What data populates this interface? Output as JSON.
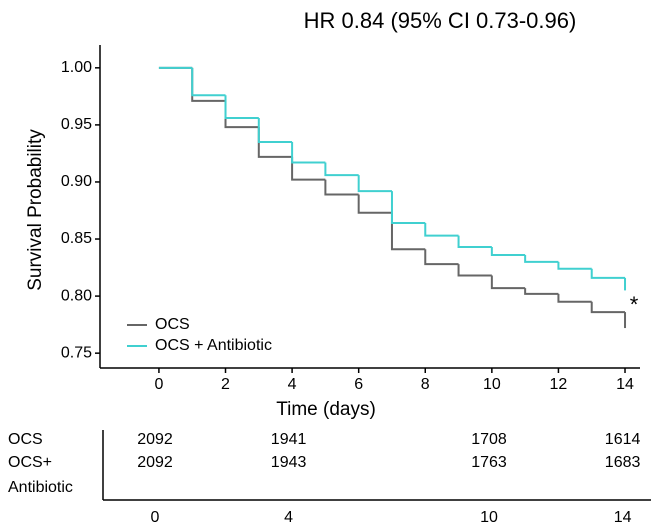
{
  "chart_data": {
    "type": "step",
    "title": "HR 0.84 (95% CI 0.73-0.96)",
    "x_label": "Time (days)",
    "y_label": "Survival Probability",
    "x": [
      0,
      1,
      2,
      3,
      4,
      5,
      6,
      7,
      8,
      9,
      10,
      11,
      12,
      13,
      14
    ],
    "series": [
      {
        "name": "OCS",
        "color": "#666666",
        "values": [
          1.0,
          0.971,
          0.948,
          0.922,
          0.902,
          0.889,
          0.873,
          0.841,
          0.828,
          0.818,
          0.807,
          0.802,
          0.795,
          0.786,
          0.772
        ]
      },
      {
        "name": "OCS + Antibiotic",
        "color": "#40d0d0",
        "values": [
          1.0,
          0.976,
          0.956,
          0.935,
          0.917,
          0.906,
          0.892,
          0.864,
          0.853,
          0.843,
          0.836,
          0.83,
          0.824,
          0.816,
          0.805
        ]
      }
    ],
    "annotation": "*",
    "xlim": [
      -1.77,
      14.45
    ],
    "ylim": [
      0.737,
      1.02
    ],
    "xticks": [
      0,
      2,
      4,
      6,
      8,
      10,
      12,
      14
    ],
    "yticks": [
      {
        "value": 1.0,
        "label": "1.00"
      },
      0.95,
      {
        "value": 0.9,
        "label": "0.90"
      },
      0.85,
      {
        "value": 0.8,
        "label": "0.80"
      },
      0.75
    ],
    "legend": "bottom-left"
  },
  "risk_table": {
    "times": [
      0,
      4,
      10,
      14
    ],
    "rows": [
      {
        "label": [
          "OCS"
        ],
        "counts": [
          2092,
          1941,
          1708,
          1614
        ]
      },
      {
        "label": [
          "OCS+",
          "Antibiotic"
        ],
        "counts": [
          2092,
          1943,
          1763,
          1683
        ]
      }
    ]
  }
}
